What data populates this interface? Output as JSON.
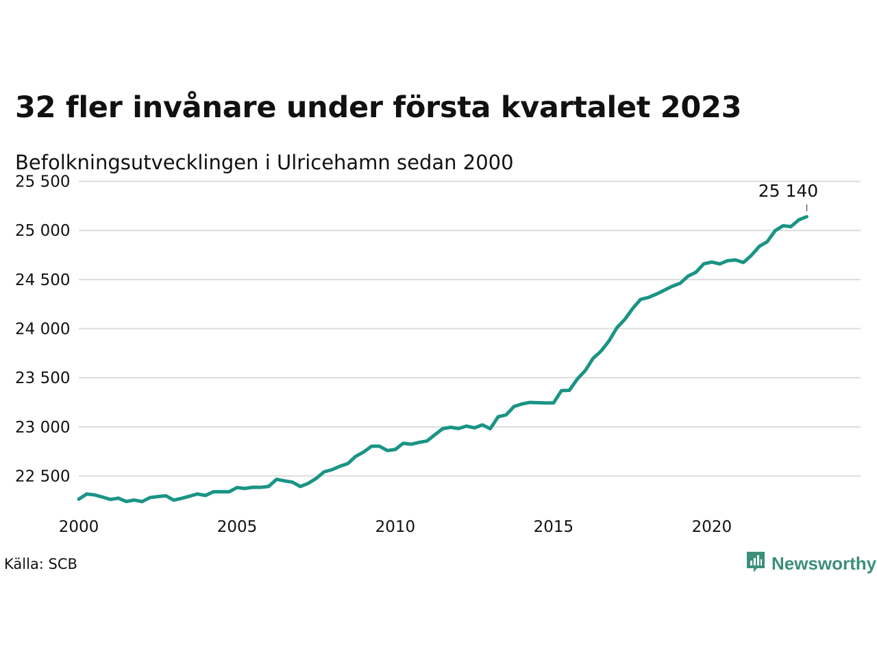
{
  "header": {
    "title": "32 fler invånare under första kvartalet 2023",
    "subtitle": "Befolkningsutvecklingen i Ulricehamn sedan 2000"
  },
  "footer": {
    "source": "Källa: SCB",
    "brand": "Newsworthy",
    "brand_icon": "newsworthy-logo-icon",
    "brand_color": "#3d8f7a"
  },
  "colors": {
    "line": "#1a9485",
    "grid": "#dcdcdc"
  },
  "chart_data": {
    "type": "line",
    "x_start": 2000.0,
    "x_step": 0.25,
    "values": [
      22264,
      22316,
      22307,
      22285,
      22261,
      22274,
      22240,
      22255,
      22239,
      22280,
      22290,
      22298,
      22254,
      22272,
      22294,
      22317,
      22301,
      22339,
      22340,
      22339,
      22382,
      22373,
      22385,
      22384,
      22394,
      22466,
      22450,
      22437,
      22393,
      22425,
      22475,
      22542,
      22564,
      22599,
      22626,
      22700,
      22744,
      22803,
      22803,
      22759,
      22770,
      22833,
      22823,
      22842,
      22856,
      22920,
      22982,
      22996,
      22983,
      23008,
      22990,
      23020,
      22981,
      23103,
      23122,
      23207,
      23233,
      23249,
      23246,
      23244,
      23244,
      23369,
      23372,
      23487,
      23572,
      23698,
      23771,
      23874,
      24009,
      24094,
      24205,
      24298,
      24318,
      24352,
      24392,
      24432,
      24462,
      24535,
      24575,
      24661,
      24678,
      24659,
      24692,
      24700,
      24674,
      24746,
      24838,
      24885,
      24997,
      25048,
      25039,
      25108,
      25140
    ],
    "x_ticks": [
      2000,
      2005,
      2010,
      2015,
      2020
    ],
    "x_tick_labels": [
      "2000",
      "2005",
      "2010",
      "2015",
      "2020"
    ],
    "y_ticks": [
      22500,
      23000,
      23500,
      24000,
      24500,
      25000,
      25500
    ],
    "y_tick_labels": [
      "22 500",
      "23 000",
      "23 500",
      "24 000",
      "24 500",
      "25 000",
      "25 500"
    ],
    "xlim": [
      2000,
      2024.7
    ],
    "ylim": [
      22140,
      25560
    ],
    "last_value_label": "25 140",
    "grid": true,
    "legend": false
  }
}
